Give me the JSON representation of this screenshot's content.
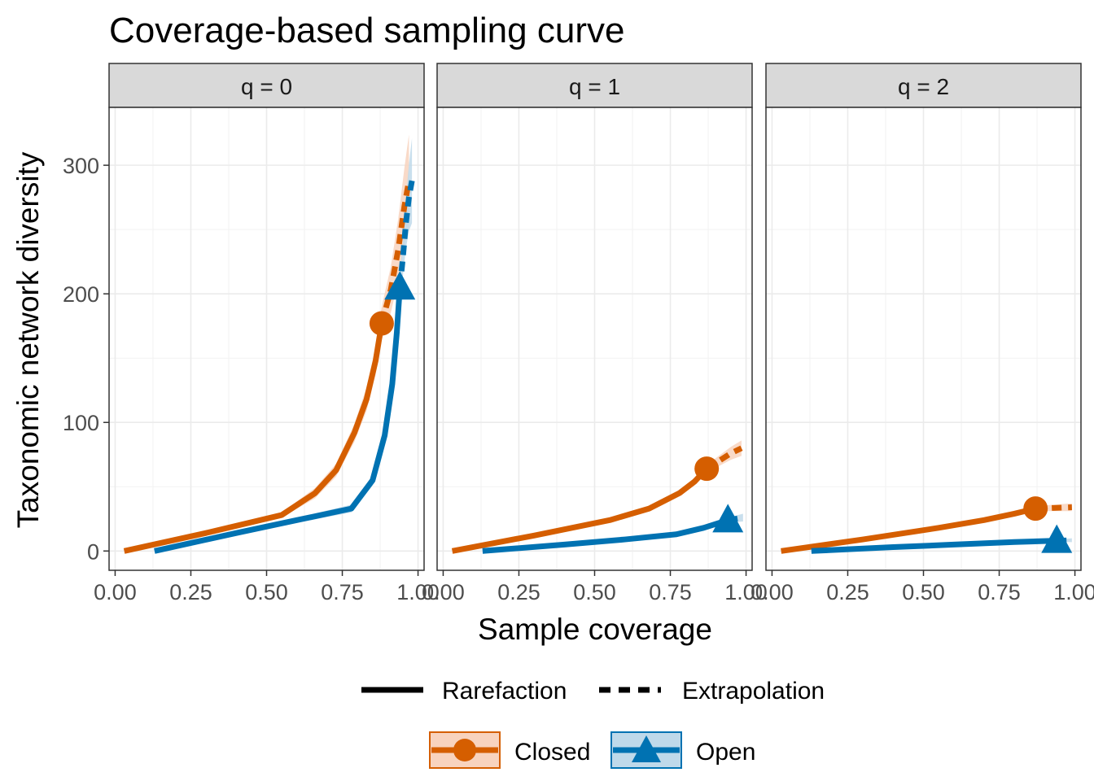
{
  "chart_data": {
    "type": "line",
    "title": "Coverage-based sampling curve",
    "xlabel": "Sample coverage",
    "ylabel": "Taxonomic network diversity",
    "xlim": [
      -0.02,
      1.02
    ],
    "ylim": [
      -15,
      345
    ],
    "x_ticks": [
      0,
      0.25,
      0.5,
      0.75,
      1
    ],
    "x_tick_labels": [
      "0.00",
      "0.25",
      "0.50",
      "0.75",
      "1.00"
    ],
    "y_ticks": [
      0,
      100,
      200,
      300
    ],
    "y_tick_labels": [
      "0",
      "100",
      "200",
      "300"
    ],
    "grid": true,
    "legend_position": "bottom",
    "colors": {
      "Closed": "#D55E00",
      "Open": "#0072B2",
      "closed_ribbon": "#F8D3BE",
      "open_ribbon": "#BFD9EA",
      "strip_bg": "#D9D9D9"
    },
    "line_type_legend": [
      "Rarefaction",
      "Extrapolation"
    ],
    "panels": [
      {
        "label": "q = 0",
        "series": [
          {
            "name": "Closed",
            "marker": "circle",
            "rarefaction": [
              [
                0.03,
                0
              ],
              [
                0.3,
                14
              ],
              [
                0.55,
                28
              ],
              [
                0.66,
                45
              ],
              [
                0.73,
                63
              ],
              [
                0.79,
                92
              ],
              [
                0.83,
                118
              ],
              [
                0.86,
                148
              ],
              [
                0.88,
                177
              ]
            ],
            "extrapolation": [
              [
                0.88,
                177
              ],
              [
                0.91,
                203
              ],
              [
                0.935,
                235
              ],
              [
                0.955,
                268
              ],
              [
                0.97,
                288
              ]
            ],
            "ribbon_halfwidth": [
              0,
              1,
              2,
              4,
              5,
              7,
              9,
              11,
              13
            ],
            "ribbon_halfwidth_ext": [
              13,
              18,
              24,
              30,
              36
            ],
            "observed": [
              0.88,
              177
            ]
          },
          {
            "name": "Open",
            "marker": "triangle",
            "rarefaction": [
              [
                0.13,
                0
              ],
              [
                0.4,
                14
              ],
              [
                0.6,
                24
              ],
              [
                0.78,
                33
              ],
              [
                0.85,
                55
              ],
              [
                0.89,
                90
              ],
              [
                0.915,
                130
              ],
              [
                0.93,
                170
              ],
              [
                0.94,
                205
              ]
            ],
            "extrapolation": [
              [
                0.94,
                205
              ],
              [
                0.95,
                228
              ],
              [
                0.96,
                255
              ],
              [
                0.97,
                275
              ],
              [
                0.98,
                288
              ]
            ],
            "ribbon_halfwidth": [
              0,
              1,
              2,
              3,
              4,
              5,
              7,
              8,
              9
            ],
            "ribbon_halfwidth_ext": [
              9,
              14,
              20,
              26,
              33
            ],
            "observed": [
              0.94,
              205
            ]
          }
        ]
      },
      {
        "label": "q = 1",
        "series": [
          {
            "name": "Closed",
            "marker": "circle",
            "rarefaction": [
              [
                0.03,
                0
              ],
              [
                0.3,
                12
              ],
              [
                0.55,
                24
              ],
              [
                0.68,
                33
              ],
              [
                0.78,
                45
              ],
              [
                0.83,
                54
              ],
              [
                0.87,
                64
              ]
            ],
            "extrapolation": [
              [
                0.87,
                64
              ],
              [
                0.91,
                70
              ],
              [
                0.95,
                76
              ],
              [
                0.985,
                80
              ]
            ],
            "ribbon_halfwidth": [
              0,
              1,
              1,
              2,
              2,
              3,
              3
            ],
            "ribbon_halfwidth_ext": [
              3,
              4,
              5,
              6
            ],
            "observed": [
              0.87,
              64
            ]
          },
          {
            "name": "Open",
            "marker": "triangle",
            "rarefaction": [
              [
                0.13,
                0
              ],
              [
                0.4,
                5
              ],
              [
                0.6,
                9
              ],
              [
                0.77,
                13
              ],
              [
                0.86,
                18
              ],
              [
                0.94,
                24
              ]
            ],
            "extrapolation": [
              [
                0.94,
                24
              ],
              [
                0.965,
                25
              ],
              [
                0.99,
                26
              ]
            ],
            "ribbon_halfwidth": [
              0,
              0.5,
              1,
              1,
              1.5,
              2
            ],
            "ribbon_halfwidth_ext": [
              2,
              2.5,
              3
            ],
            "observed": [
              0.94,
              24
            ]
          }
        ]
      },
      {
        "label": "q = 2",
        "series": [
          {
            "name": "Closed",
            "marker": "circle",
            "rarefaction": [
              [
                0.03,
                0
              ],
              [
                0.3,
                9
              ],
              [
                0.55,
                18
              ],
              [
                0.7,
                24
              ],
              [
                0.8,
                29
              ],
              [
                0.87,
                33
              ]
            ],
            "extrapolation": [
              [
                0.87,
                33
              ],
              [
                0.93,
                33.5
              ],
              [
                0.99,
                34
              ]
            ],
            "ribbon_halfwidth": [
              0,
              0.5,
              1,
              1,
              1.5,
              2
            ],
            "ribbon_halfwidth_ext": [
              2,
              2.5,
              3
            ],
            "observed": [
              0.87,
              33
            ]
          },
          {
            "name": "Open",
            "marker": "triangle",
            "rarefaction": [
              [
                0.13,
                0
              ],
              [
                0.4,
                3
              ],
              [
                0.6,
                5
              ],
              [
                0.8,
                7
              ],
              [
                0.94,
                8
              ]
            ],
            "extrapolation": [
              [
                0.94,
                8
              ],
              [
                0.97,
                8.2
              ],
              [
                0.99,
                8.4
              ]
            ],
            "ribbon_halfwidth": [
              0,
              0.5,
              0.5,
              1,
              1
            ],
            "ribbon_halfwidth_ext": [
              1,
              1.2,
              1.5
            ],
            "observed": [
              0.94,
              8
            ]
          }
        ]
      }
    ]
  }
}
